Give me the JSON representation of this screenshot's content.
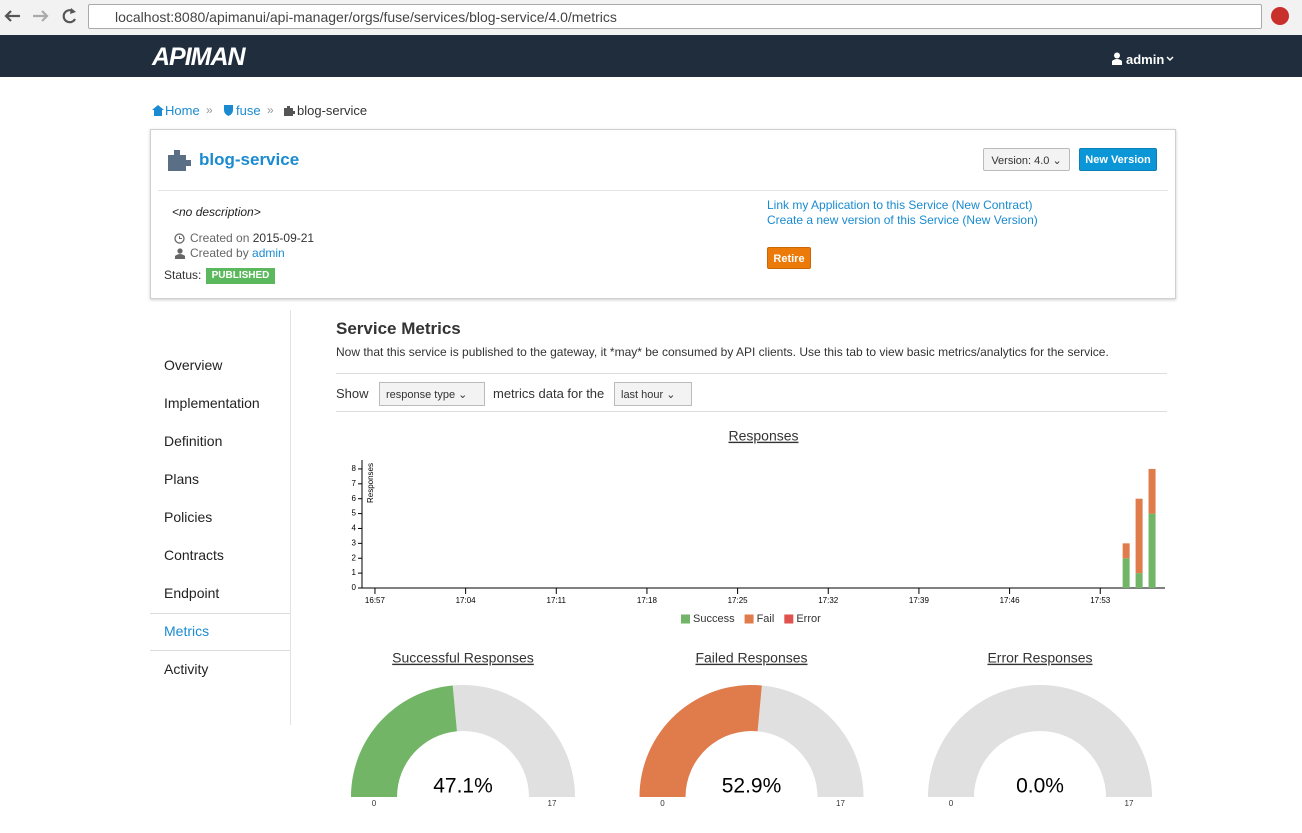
{
  "browser": {
    "url": "localhost:8080/apimanui/api-manager/orgs/fuse/services/blog-service/4.0/metrics"
  },
  "navbar": {
    "brand": "APIMAN",
    "user": "admin"
  },
  "breadcrumb": [
    "Home",
    "fuse",
    "blog-service"
  ],
  "service": {
    "name": "blog-service",
    "version_button": "Version: 4.0",
    "new_version": "New Version",
    "description": "<no description>",
    "created_on_label": "Created on",
    "created_on": "2015-09-21",
    "created_by_label": "Created by",
    "created_by": "admin",
    "status_label": "Status:",
    "status": "PUBLISHED",
    "links": [
      "Link my Application to this Service (New Contract)",
      "Create a new version of this Service (New Version)"
    ],
    "retire": "Retire"
  },
  "tabs": [
    "Overview",
    "Implementation",
    "Definition",
    "Plans",
    "Policies",
    "Contracts",
    "Endpoint",
    "Metrics",
    "Activity"
  ],
  "metrics": {
    "title": "Service Metrics",
    "description": "Now that this service is published to the gateway, it *may* be consumed by API clients. Use this tab to view basic metrics/analytics for the service.",
    "show_label": "Show",
    "show_select": "response type",
    "middle_label": "metrics data for the",
    "range_select": "last hour"
  },
  "chart_data": [
    {
      "type": "bar",
      "stacked": true,
      "title": "Responses",
      "y_label": "Responses",
      "x": [
        "17:55",
        "17:56",
        "17:57"
      ],
      "xlim": [
        "16:56",
        "17:58"
      ],
      "xticks": [
        "16:57",
        "17:04",
        "17:11",
        "17:18",
        "17:25",
        "17:32",
        "17:39",
        "17:46",
        "17:53"
      ],
      "ylim": [
        0,
        8.6
      ],
      "yticks": [
        0,
        1,
        2,
        3,
        4,
        5,
        6,
        7,
        8
      ],
      "legend": "bottom",
      "series": [
        {
          "name": "Success",
          "color": "#72b566",
          "values": [
            2,
            1,
            5
          ]
        },
        {
          "name": "Fail",
          "color": "#e07b4c",
          "values": [
            1,
            5,
            3
          ]
        },
        {
          "name": "Error",
          "color": "#e0524d",
          "values": [
            0,
            0,
            0
          ]
        }
      ]
    },
    {
      "type": "gauge",
      "title": "Successful Responses",
      "values": [
        8
      ],
      "value_labels": [
        "47.1%"
      ],
      "ylim": [
        0,
        17
      ],
      "color": "#72b566"
    },
    {
      "type": "gauge",
      "title": "Failed Responses",
      "values": [
        9
      ],
      "value_labels": [
        "52.9%"
      ],
      "ylim": [
        0,
        17
      ],
      "color": "#e07b4c"
    },
    {
      "type": "gauge",
      "title": "Error Responses",
      "values": [
        0
      ],
      "value_labels": [
        "0.0%"
      ],
      "ylim": [
        0,
        17
      ],
      "color": "#e0524d"
    }
  ]
}
